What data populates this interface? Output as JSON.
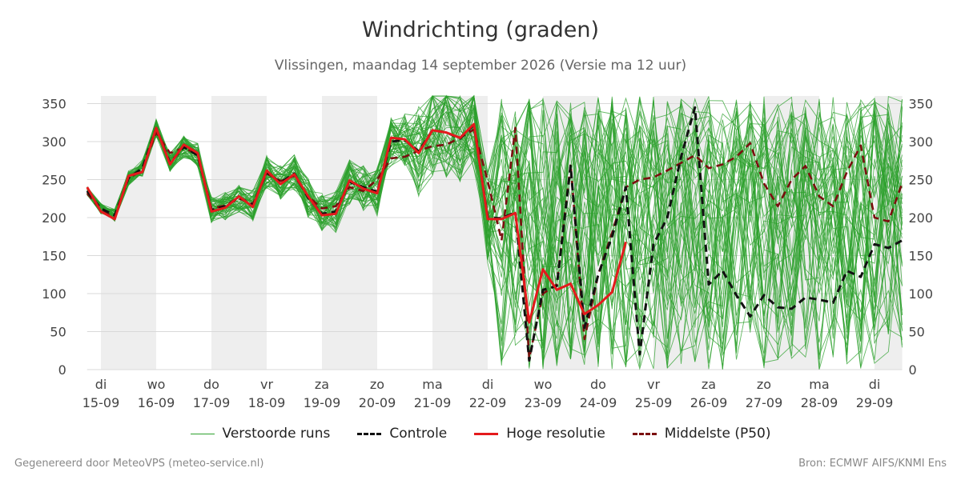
{
  "header": {
    "title": "Windrichting (graden)",
    "subtitle": "Vlissingen, maandag 14 september 2026 (Versie ma 12 uur)"
  },
  "footer": {
    "left": "Gegenereerd door MeteoVPS (meteo-service.nl)",
    "right": "Bron: ECMWF AIFS/KNMI Ens"
  },
  "colors": {
    "ensemble": "#2ca02c",
    "control": "#111111",
    "hires": "#e41a1c",
    "median": "#7b0f0f",
    "grid": "#d9d9d9",
    "band": "#eeeeee"
  },
  "chart_data": {
    "type": "line",
    "title": "Windrichting (graden)",
    "subtitle": "Vlissingen, maandag 14 september 2026 (Versie ma 12 uur)",
    "x_unit": "days since di 15-09 00h (dag ticks)",
    "xlim": [
      -0.25,
      14.5
    ],
    "ylim": [
      0,
      360
    ],
    "y_ticks": [
      0,
      50,
      100,
      150,
      200,
      250,
      300,
      350
    ],
    "grid": true,
    "x_ticks": [
      {
        "x": 0,
        "day": "di",
        "date": "15-09"
      },
      {
        "x": 1,
        "day": "wo",
        "date": "16-09"
      },
      {
        "x": 2,
        "day": "do",
        "date": "17-09"
      },
      {
        "x": 3,
        "day": "vr",
        "date": "18-09"
      },
      {
        "x": 4,
        "day": "za",
        "date": "19-09"
      },
      {
        "x": 5,
        "day": "zo",
        "date": "20-09"
      },
      {
        "x": 6,
        "day": "ma",
        "date": "21-09"
      },
      {
        "x": 7,
        "day": "di",
        "date": "22-09"
      },
      {
        "x": 8,
        "day": "wo",
        "date": "23-09"
      },
      {
        "x": 9,
        "day": "do",
        "date": "24-09"
      },
      {
        "x": 10,
        "day": "vr",
        "date": "25-09"
      },
      {
        "x": 11,
        "day": "za",
        "date": "26-09"
      },
      {
        "x": 12,
        "day": "zo",
        "date": "27-09"
      },
      {
        "x": 13,
        "day": "ma",
        "date": "28-09"
      },
      {
        "x": 14,
        "day": "di",
        "date": "29-09"
      }
    ],
    "night_bands": [
      [
        0,
        1
      ],
      [
        2,
        3
      ],
      [
        4,
        5
      ],
      [
        6,
        7
      ],
      [
        8,
        9
      ],
      [
        10,
        11
      ],
      [
        12,
        13
      ],
      [
        14,
        14.5
      ]
    ],
    "legend": [
      "Verstoorde runs",
      "Controle",
      "Hoge resolutie",
      "Middelste (P50)"
    ],
    "series": [
      {
        "name": "Hoge resolutie",
        "style": "solid-red",
        "x": [
          -0.25,
          0,
          0.25,
          0.5,
          0.75,
          1,
          1.25,
          1.5,
          1.75,
          2,
          2.25,
          2.5,
          2.75,
          3,
          3.25,
          3.5,
          3.75,
          4,
          4.25,
          4.5,
          4.75,
          5,
          5.25,
          5.5,
          5.75,
          6,
          6.25,
          6.5,
          6.75,
          7,
          7.25,
          7.5,
          7.75,
          8,
          8.25,
          8.5,
          8.75,
          9,
          9.25,
          9.5,
          9.75
        ],
        "values": [
          240,
          208,
          198,
          255,
          260,
          318,
          270,
          296,
          285,
          208,
          213,
          228,
          214,
          262,
          244,
          257,
          228,
          203,
          205,
          249,
          238,
          232,
          305,
          303,
          285,
          315,
          312,
          305,
          323,
          198,
          198,
          206,
          62,
          132,
          105,
          113,
          73,
          85,
          102,
          168,
          null
        ]
      },
      {
        "name": "Controle",
        "style": "dashed-black",
        "x": [
          -0.25,
          0,
          0.25,
          0.5,
          0.75,
          1,
          1.25,
          1.5,
          1.75,
          2,
          2.25,
          2.5,
          2.75,
          3,
          3.25,
          3.5,
          3.75,
          4,
          4.25,
          4.5,
          4.75,
          5,
          5.25,
          5.5,
          5.75,
          6,
          6.25,
          6.5,
          6.75,
          7,
          7.25,
          7.5,
          7.75,
          8,
          8.25,
          8.5,
          8.75,
          9,
          9.25,
          9.5,
          9.75,
          10,
          10.25,
          10.5,
          10.75,
          11,
          11.25,
          11.5,
          11.75,
          12,
          12.25,
          12.5,
          12.75,
          13,
          13.25,
          13.5,
          13.75,
          14,
          14.25,
          14.5
        ],
        "values": [
          235,
          212,
          203,
          252,
          265,
          318,
          272,
          293,
          282,
          210,
          215,
          227,
          216,
          260,
          246,
          258,
          226,
          205,
          208,
          247,
          240,
          234,
          300,
          302,
          287,
          315,
          312,
          304,
          322,
          200,
          199,
          207,
          12,
          105,
          110,
          268,
          55,
          125,
          175,
          240,
          20,
          165,
          200,
          280,
          345,
          112,
          130,
          98,
          70,
          98,
          82,
          80,
          95,
          92,
          88,
          130,
          122,
          165,
          160,
          170
        ]
      },
      {
        "name": "Middelste (P50)",
        "style": "dashed-darkred",
        "x": [
          -0.25,
          0,
          0.25,
          0.5,
          0.75,
          1,
          1.25,
          1.5,
          1.75,
          2,
          2.25,
          2.5,
          2.75,
          3,
          3.25,
          3.5,
          3.75,
          4,
          4.25,
          4.5,
          4.75,
          5,
          5.25,
          5.5,
          5.75,
          6,
          6.25,
          6.5,
          6.75,
          7,
          7.25,
          7.5,
          7.75,
          8,
          8.25,
          8.5,
          8.75,
          9,
          9.25,
          9.5,
          9.75,
          10,
          10.25,
          10.5,
          10.75,
          11,
          11.25,
          11.5,
          11.75,
          12,
          12.25,
          12.5,
          12.75,
          13,
          13.25,
          13.5,
          13.75,
          14,
          14.25,
          14.5
        ],
        "values": [
          232,
          210,
          200,
          252,
          262,
          312,
          285,
          292,
          283,
          212,
          216,
          225,
          218,
          258,
          248,
          255,
          228,
          212,
          215,
          240,
          235,
          250,
          278,
          280,
          288,
          294,
          296,
          305,
          316,
          248,
          170,
          318,
          15,
          100,
          112,
          270,
          40,
          125,
          180,
          240,
          250,
          253,
          262,
          272,
          282,
          265,
          270,
          280,
          298,
          245,
          215,
          250,
          268,
          228,
          215,
          260,
          295,
          200,
          195,
          245
        ]
      }
    ],
    "ensemble": {
      "name": "Verstoorde runs",
      "members": 50,
      "x_step": 0.25,
      "x_range": [
        -0.25,
        14.5
      ],
      "converged_until": 6.0,
      "note": "individuele runs niet afleesbaar; spreiding tot dag 6 klein rond de hoge resolutie, daarna over 0-360 graden"
    }
  }
}
